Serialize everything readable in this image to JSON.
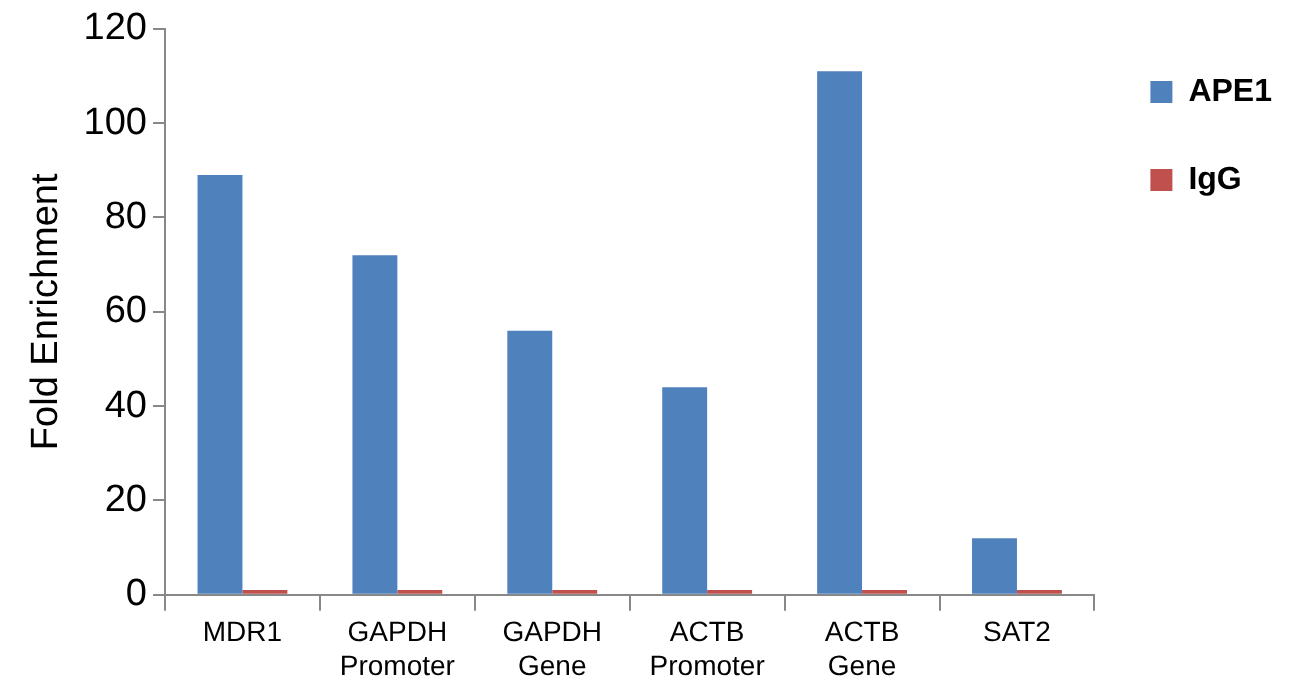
{
  "chart_data": {
    "type": "bar",
    "ylabel": "Fold Enrichment",
    "categories": [
      "MDR1",
      "GAPDH Promoter",
      "GAPDH Gene",
      "ACTB Promoter",
      "ACTB Gene",
      "SAT2"
    ],
    "series": [
      {
        "name": "APE1",
        "color": "#4f81bd",
        "values": [
          89,
          72,
          56,
          44,
          111,
          12
        ]
      },
      {
        "name": "IgG",
        "color": "#c0504d",
        "values": [
          1,
          1,
          1,
          1,
          1,
          1
        ]
      }
    ],
    "ylim": [
      0,
      120
    ],
    "yticks": [
      0,
      20,
      40,
      60,
      80,
      100,
      120
    ],
    "grid": false,
    "legend": "top right"
  }
}
